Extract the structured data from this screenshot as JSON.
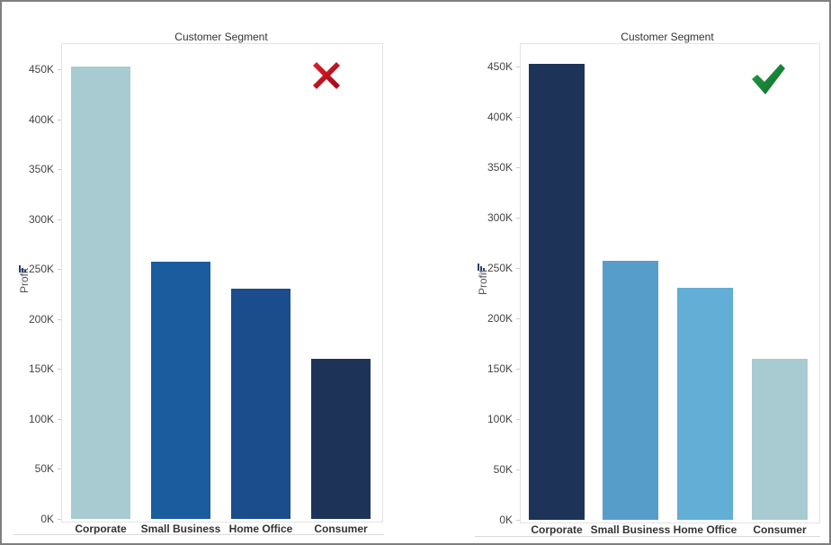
{
  "chart_data": [
    {
      "type": "bar",
      "title": "Customer Segment",
      "xlabel": "",
      "ylabel": "Profit",
      "categories": [
        "Corporate",
        "Small Business",
        "Home Office",
        "Consumer"
      ],
      "values": [
        453000,
        257000,
        230000,
        160000
      ],
      "colors": [
        "#a7cbd1",
        "#1a5c9e",
        "#1b4d8c",
        "#1e3358"
      ],
      "yticks": [
        "0K",
        "50K",
        "100K",
        "150K",
        "200K",
        "250K",
        "300K",
        "350K",
        "400K",
        "450K"
      ],
      "ylim": [
        0,
        450000
      ],
      "grid": false,
      "verdict_icon": "red-x-icon",
      "verdict_color": "#c0101e"
    },
    {
      "type": "bar",
      "title": "Customer Segment",
      "xlabel": "",
      "ylabel": "Profit",
      "categories": [
        "Corporate",
        "Small Business",
        "Home Office",
        "Consumer"
      ],
      "values": [
        453000,
        257000,
        230000,
        160000
      ],
      "colors": [
        "#1e3358",
        "#569dca",
        "#62aed6",
        "#a7cbd1"
      ],
      "yticks": [
        "0K",
        "50K",
        "100K",
        "150K",
        "200K",
        "250K",
        "300K",
        "350K",
        "400K",
        "450K"
      ],
      "ylim": [
        0,
        450000
      ],
      "grid": false,
      "verdict_icon": "green-check-icon",
      "verdict_color": "#1a7a36"
    }
  ]
}
